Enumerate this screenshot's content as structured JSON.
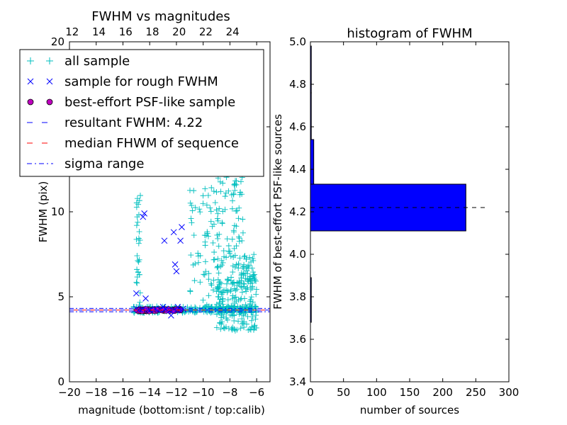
{
  "chart_data": [
    {
      "type": "scatter",
      "title": "FWHM vs magnitudes",
      "xlabel": "magnitude (bottom:isnt / top:calib)",
      "ylabel": "FWHM (pix)",
      "xlim": [
        -20,
        -5
      ],
      "ylim": [
        0,
        20
      ],
      "x_ticks": [
        "−20",
        "−18",
        "−16",
        "−14",
        "−12",
        "−10",
        "−8",
        "−6"
      ],
      "x_tick_values": [
        -20,
        -18,
        -16,
        -14,
        -12,
        -10,
        -8,
        -6
      ],
      "y_ticks": [
        "0",
        "5",
        "10",
        "15",
        "20"
      ],
      "y_tick_values": [
        0,
        5,
        10,
        15,
        20
      ],
      "top_axis_ticks": [
        "12",
        "14",
        "16",
        "18",
        "20",
        "22",
        "24"
      ],
      "top_axis_offset": 31.8,
      "grid": false,
      "legend": {
        "position": "top-left",
        "entries": [
          {
            "label": "all sample",
            "marker": "plus",
            "color": "#00bfbf"
          },
          {
            "label": "sample for rough FWHM",
            "marker": "x",
            "color": "#0000ff"
          },
          {
            "label": "best-effort PSF-like sample",
            "marker": "circle",
            "color": "#bf00bf"
          },
          {
            "label": "resultant FWHM: 4.22",
            "marker": "dashed",
            "color": "#0000ff"
          },
          {
            "label": "median FHWM of sequence",
            "marker": "dashed",
            "color": "#ff0000"
          },
          {
            "label": "sigma range",
            "marker": "dashdot",
            "color": "#0000ff"
          }
        ]
      },
      "resultant_fwhm": 4.22,
      "median_fwhm": 4.22,
      "sigma_range": [
        4.12,
        4.32
      ],
      "series": [
        {
          "name": "all sample",
          "color": "#00bfbf",
          "clusters": [
            {
              "x_range": [
                -15.2,
                -6.0
              ],
              "y_range": [
                4.05,
                4.45
              ],
              "n": 260
            },
            {
              "x_range": [
                -9.0,
                -6.0
              ],
              "y_range": [
                3.0,
                7.5
              ],
              "n": 230
            },
            {
              "x_range": [
                -9.0,
                -7.0
              ],
              "y_range": [
                7.5,
                12.5
              ],
              "n": 70
            },
            {
              "x_range": [
                -9.0,
                -7.5
              ],
              "y_range": [
                12.5,
                19.8
              ],
              "n": 35
            },
            {
              "x_range": [
                -11.0,
                -9.0
              ],
              "y_range": [
                4.4,
                11.5
              ],
              "n": 60
            },
            {
              "x_range": [
                -15.0,
                -14.7
              ],
              "y_range": [
                4.5,
                11.0
              ],
              "n": 30
            }
          ]
        },
        {
          "name": "sample for rough FWHM",
          "color": "#0000ff",
          "points": [
            [
              -14.5,
              9.7
            ],
            [
              -14.4,
              9.9
            ],
            [
              -12.2,
              8.8
            ],
            [
              -11.6,
              9.1
            ],
            [
              -11.7,
              8.3
            ],
            [
              -12.9,
              8.3
            ],
            [
              -12.1,
              6.9
            ],
            [
              -12.0,
              6.5
            ],
            [
              -15.0,
              5.2
            ],
            [
              -14.3,
              4.9
            ],
            [
              -12.4,
              3.9
            ],
            [
              -13.0,
              4.4
            ],
            [
              -11.9,
              4.4
            ],
            [
              -14.5,
              4.3
            ],
            [
              -13.6,
              4.3
            ],
            [
              -12.8,
              4.3
            ],
            [
              -12.0,
              4.2
            ],
            [
              -11.5,
              4.3
            ],
            [
              -14.0,
              4.2
            ],
            [
              -13.2,
              4.25
            ],
            [
              -12.5,
              4.2
            ],
            [
              -15.0,
              4.3
            ]
          ]
        },
        {
          "name": "best-effort PSF-like sample",
          "color": "#bf00bf",
          "x_range": [
            -15.0,
            -11.6
          ],
          "y_range": [
            4.12,
            4.3
          ],
          "n": 150
        }
      ]
    },
    {
      "type": "bar",
      "orientation": "horizontal",
      "title": "histogram of FWHM",
      "xlabel": "number of sources",
      "ylabel": "FWHM of best-effort PSF-like sources",
      "xlim": [
        0,
        300
      ],
      "ylim": [
        3.4,
        5.0
      ],
      "x_ticks": [
        "0",
        "50",
        "100",
        "150",
        "200",
        "250",
        "300"
      ],
      "x_tick_values": [
        0,
        50,
        100,
        150,
        200,
        250,
        300
      ],
      "y_ticks": [
        "3.4",
        "3.6",
        "3.8",
        "4.0",
        "4.2",
        "4.4",
        "4.6",
        "4.8",
        "5.0"
      ],
      "y_tick_values": [
        3.4,
        3.6,
        3.8,
        4.0,
        4.2,
        4.4,
        4.6,
        4.8,
        5.0
      ],
      "bar_color": "#0000ff",
      "bars": [
        {
          "y0": 3.68,
          "y1": 3.89,
          "value": 1
        },
        {
          "y0": 3.89,
          "y1": 4.11,
          "value": 0
        },
        {
          "y0": 4.11,
          "y1": 4.33,
          "value": 235
        },
        {
          "y0": 4.33,
          "y1": 4.54,
          "value": 5
        },
        {
          "y0": 4.54,
          "y1": 4.76,
          "value": 1
        },
        {
          "y0": 4.76,
          "y1": 4.98,
          "value": 1
        }
      ],
      "reference_line": {
        "y": 4.22,
        "x_range": [
          0,
          270
        ],
        "style": "dashed",
        "color": "#000000"
      }
    }
  ]
}
